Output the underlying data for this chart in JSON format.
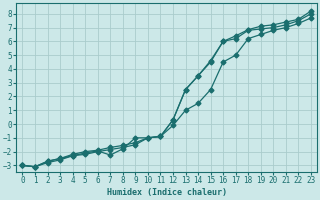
{
  "xlabel": "Humidex (Indice chaleur)",
  "bg_color": "#cce8e8",
  "grid_color": "#aacccc",
  "line_color": "#1a6e6e",
  "xlim": [
    -0.5,
    23.5
  ],
  "ylim": [
    -3.5,
    8.8
  ],
  "xticks": [
    0,
    1,
    2,
    3,
    4,
    5,
    6,
    7,
    8,
    9,
    10,
    11,
    12,
    13,
    14,
    15,
    16,
    17,
    18,
    19,
    20,
    21,
    22,
    23
  ],
  "yticks": [
    -3,
    -2,
    -1,
    0,
    1,
    2,
    3,
    4,
    5,
    6,
    7,
    8
  ],
  "line1_x": [
    0,
    1,
    2,
    3,
    4,
    5,
    6,
    7,
    8,
    9,
    10,
    11,
    12,
    13,
    14,
    15,
    16,
    17,
    18,
    19,
    20,
    21,
    22,
    23
  ],
  "line1_y": [
    -3.0,
    -3.1,
    -2.8,
    -2.6,
    -2.3,
    -2.2,
    -2.0,
    -1.85,
    -1.7,
    -1.5,
    -1.0,
    -0.9,
    -0.1,
    1.0,
    1.5,
    2.5,
    4.5,
    5.0,
    6.2,
    6.5,
    6.8,
    7.0,
    7.3,
    7.7
  ],
  "line2_x": [
    0,
    1,
    2,
    3,
    4,
    5,
    6,
    7,
    8,
    9,
    10,
    11,
    12,
    13,
    14,
    15,
    16,
    17,
    18,
    19,
    20,
    21,
    22,
    23
  ],
  "line2_y": [
    -3.0,
    -3.1,
    -2.7,
    -2.5,
    -2.3,
    -2.1,
    -1.95,
    -2.25,
    -1.8,
    -1.0,
    -1.0,
    -0.9,
    0.3,
    2.5,
    3.5,
    4.5,
    6.0,
    6.2,
    6.8,
    6.9,
    7.0,
    7.2,
    7.5,
    8.0
  ],
  "line3_x": [
    0,
    1,
    2,
    3,
    4,
    5,
    6,
    7,
    8,
    9,
    10,
    11,
    12,
    13,
    14,
    15,
    16,
    17,
    18,
    19,
    20,
    21,
    22,
    23
  ],
  "line3_y": [
    -3.0,
    -3.1,
    -2.7,
    -2.5,
    -2.2,
    -2.0,
    -1.9,
    -1.7,
    -1.55,
    -1.35,
    -1.0,
    -0.9,
    0.3,
    2.5,
    3.5,
    4.6,
    6.0,
    6.4,
    6.85,
    7.1,
    7.2,
    7.4,
    7.6,
    8.2
  ]
}
